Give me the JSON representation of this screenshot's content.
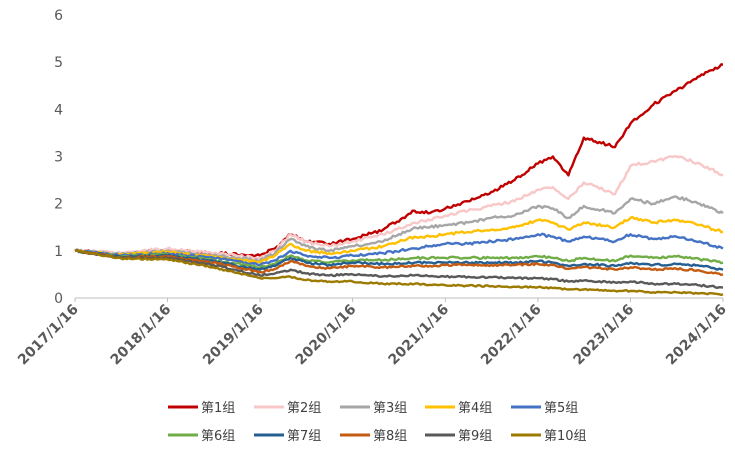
{
  "chart_data": {
    "type": "line",
    "title": "",
    "xlabel": "",
    "ylabel": "",
    "ylim": [
      0,
      6
    ],
    "yticks": [
      0,
      1,
      2,
      3,
      4,
      5,
      6
    ],
    "xlim": [
      "2017/1/16",
      "2024/1/16"
    ],
    "xticks": [
      "2017/1/16",
      "2018/1/16",
      "2019/1/16",
      "2020/1/16",
      "2021/1/16",
      "2022/1/16",
      "2023/1/16",
      "2024/1/16"
    ],
    "grid": false,
    "legend_position": "bottom",
    "series": [
      {
        "name": "第1组",
        "color": "#C00000",
        "x": [
          "2017/1/16",
          "2017/7/16",
          "2018/1/16",
          "2018/7/16",
          "2019/1/16",
          "2019/3/16",
          "2019/5/16",
          "2019/7/16",
          "2019/10/16",
          "2020/1/16",
          "2020/5/16",
          "2020/9/16",
          "2020/11/16",
          "2021/1/16",
          "2021/4/16",
          "2021/7/16",
          "2021/10/16",
          "2022/1/16",
          "2022/3/16",
          "2022/5/16",
          "2022/7/16",
          "2022/11/16",
          "2023/1/16",
          "2023/4/16",
          "2023/7/16",
          "2023/10/16",
          "2024/1/16"
        ],
        "y": [
          1.0,
          0.92,
          1.02,
          0.95,
          0.9,
          1.05,
          1.35,
          1.2,
          1.15,
          1.25,
          1.45,
          1.85,
          1.8,
          1.9,
          2.05,
          2.25,
          2.5,
          2.85,
          3.0,
          2.6,
          3.4,
          3.2,
          3.7,
          4.1,
          4.4,
          4.7,
          4.95
        ]
      },
      {
        "name": "第2组",
        "color": "#F8C8C8",
        "x": [
          "2017/1/16",
          "2017/7/16",
          "2018/1/16",
          "2018/7/16",
          "2019/1/16",
          "2019/3/16",
          "2019/5/16",
          "2019/7/16",
          "2019/10/16",
          "2020/1/16",
          "2020/5/16",
          "2020/9/16",
          "2020/11/16",
          "2021/1/16",
          "2021/4/16",
          "2021/7/16",
          "2021/10/16",
          "2022/1/16",
          "2022/3/16",
          "2022/5/16",
          "2022/7/16",
          "2022/11/16",
          "2023/1/16",
          "2023/4/16",
          "2023/7/16",
          "2023/10/16",
          "2024/1/16"
        ],
        "y": [
          1.0,
          0.95,
          1.05,
          0.95,
          0.85,
          1.0,
          1.35,
          1.2,
          1.1,
          1.2,
          1.35,
          1.6,
          1.65,
          1.75,
          1.85,
          1.95,
          2.05,
          2.3,
          2.35,
          2.1,
          2.45,
          2.2,
          2.8,
          2.9,
          3.0,
          2.85,
          2.6
        ]
      },
      {
        "name": "第3组",
        "color": "#A6A6A6",
        "x": [
          "2017/1/16",
          "2017/7/16",
          "2018/1/16",
          "2018/7/16",
          "2019/1/16",
          "2019/3/16",
          "2019/5/16",
          "2019/7/16",
          "2019/10/16",
          "2020/1/16",
          "2020/5/16",
          "2020/9/16",
          "2020/11/16",
          "2021/1/16",
          "2021/4/16",
          "2021/7/16",
          "2021/10/16",
          "2022/1/16",
          "2022/3/16",
          "2022/5/16",
          "2022/7/16",
          "2022/11/16",
          "2023/1/16",
          "2023/4/16",
          "2023/7/16",
          "2023/10/16",
          "2024/1/16"
        ],
        "y": [
          1.0,
          0.93,
          1.0,
          0.9,
          0.8,
          0.95,
          1.25,
          1.1,
          1.0,
          1.1,
          1.2,
          1.5,
          1.5,
          1.55,
          1.6,
          1.7,
          1.75,
          1.95,
          1.9,
          1.7,
          1.95,
          1.8,
          2.1,
          2.0,
          2.15,
          2.0,
          1.8
        ]
      },
      {
        "name": "第4组",
        "color": "#FFC000",
        "x": [
          "2017/1/16",
          "2017/7/16",
          "2018/1/16",
          "2018/7/16",
          "2019/1/16",
          "2019/3/16",
          "2019/5/16",
          "2019/7/16",
          "2019/10/16",
          "2020/1/16",
          "2020/5/16",
          "2020/9/16",
          "2020/11/16",
          "2021/1/16",
          "2021/4/16",
          "2021/7/16",
          "2021/10/16",
          "2022/1/16",
          "2022/3/16",
          "2022/5/16",
          "2022/7/16",
          "2022/11/16",
          "2023/1/16",
          "2023/4/16",
          "2023/7/16",
          "2023/10/16",
          "2024/1/16"
        ],
        "y": [
          1.0,
          0.92,
          0.98,
          0.88,
          0.75,
          0.9,
          1.15,
          1.0,
          0.95,
          1.0,
          1.1,
          1.3,
          1.3,
          1.35,
          1.4,
          1.45,
          1.5,
          1.65,
          1.6,
          1.45,
          1.6,
          1.5,
          1.7,
          1.6,
          1.65,
          1.55,
          1.4
        ]
      },
      {
        "name": "第5组",
        "color": "#4472C4",
        "x": [
          "2017/1/16",
          "2017/7/16",
          "2018/1/16",
          "2018/7/16",
          "2019/1/16",
          "2019/3/16",
          "2019/5/16",
          "2019/7/16",
          "2019/10/16",
          "2020/1/16",
          "2020/5/16",
          "2020/9/16",
          "2020/11/16",
          "2021/1/16",
          "2021/4/16",
          "2021/7/16",
          "2021/10/16",
          "2022/1/16",
          "2022/3/16",
          "2022/5/16",
          "2022/7/16",
          "2022/11/16",
          "2023/1/16",
          "2023/4/16",
          "2023/7/16",
          "2023/10/16",
          "2024/1/16"
        ],
        "y": [
          1.0,
          0.9,
          0.95,
          0.85,
          0.7,
          0.8,
          1.0,
          0.9,
          0.85,
          0.9,
          0.95,
          1.05,
          1.1,
          1.15,
          1.15,
          1.2,
          1.25,
          1.35,
          1.3,
          1.2,
          1.3,
          1.2,
          1.35,
          1.25,
          1.3,
          1.2,
          1.05
        ]
      },
      {
        "name": "第6组",
        "color": "#70AD47",
        "x": [
          "2017/1/16",
          "2017/7/16",
          "2018/1/16",
          "2018/7/16",
          "2019/1/16",
          "2019/3/16",
          "2019/5/16",
          "2019/7/16",
          "2019/10/16",
          "2020/1/16",
          "2020/5/16",
          "2020/9/16",
          "2020/11/16",
          "2021/1/16",
          "2021/4/16",
          "2021/7/16",
          "2021/10/16",
          "2022/1/16",
          "2022/3/16",
          "2022/5/16",
          "2022/7/16",
          "2022/11/16",
          "2023/1/16",
          "2023/4/16",
          "2023/7/16",
          "2023/10/16",
          "2024/1/16"
        ],
        "y": [
          1.0,
          0.88,
          0.92,
          0.8,
          0.65,
          0.72,
          0.9,
          0.8,
          0.75,
          0.8,
          0.8,
          0.85,
          0.85,
          0.85,
          0.85,
          0.85,
          0.85,
          0.88,
          0.85,
          0.78,
          0.85,
          0.78,
          0.9,
          0.85,
          0.88,
          0.82,
          0.75
        ]
      },
      {
        "name": "第7组",
        "color": "#255E91",
        "x": [
          "2017/1/16",
          "2017/7/16",
          "2018/1/16",
          "2018/7/16",
          "2019/1/16",
          "2019/3/16",
          "2019/5/16",
          "2019/7/16",
          "2019/10/16",
          "2020/1/16",
          "2020/5/16",
          "2020/9/16",
          "2020/11/16",
          "2021/1/16",
          "2021/4/16",
          "2021/7/16",
          "2021/10/16",
          "2022/1/16",
          "2022/3/16",
          "2022/5/16",
          "2022/7/16",
          "2022/11/16",
          "2023/1/16",
          "2023/4/16",
          "2023/7/16",
          "2023/10/16",
          "2024/1/16"
        ],
        "y": [
          1.0,
          0.87,
          0.9,
          0.78,
          0.6,
          0.68,
          0.85,
          0.75,
          0.7,
          0.75,
          0.72,
          0.75,
          0.75,
          0.75,
          0.75,
          0.75,
          0.75,
          0.78,
          0.75,
          0.68,
          0.72,
          0.68,
          0.75,
          0.7,
          0.72,
          0.68,
          0.6
        ]
      },
      {
        "name": "第8组",
        "color": "#C55A11",
        "x": [
          "2017/1/16",
          "2017/7/16",
          "2018/1/16",
          "2018/7/16",
          "2019/1/16",
          "2019/3/16",
          "2019/5/16",
          "2019/7/16",
          "2019/10/16",
          "2020/1/16",
          "2020/5/16",
          "2020/9/16",
          "2020/11/16",
          "2021/1/16",
          "2021/4/16",
          "2021/7/16",
          "2021/10/16",
          "2022/1/16",
          "2022/3/16",
          "2022/5/16",
          "2022/7/16",
          "2022/11/16",
          "2023/1/16",
          "2023/4/16",
          "2023/7/16",
          "2023/10/16",
          "2024/1/16"
        ],
        "y": [
          1.0,
          0.86,
          0.88,
          0.75,
          0.55,
          0.62,
          0.78,
          0.68,
          0.63,
          0.68,
          0.65,
          0.68,
          0.68,
          0.7,
          0.7,
          0.7,
          0.7,
          0.72,
          0.7,
          0.62,
          0.66,
          0.6,
          0.65,
          0.6,
          0.62,
          0.58,
          0.5
        ]
      },
      {
        "name": "第9组",
        "color": "#595959",
        "x": [
          "2017/1/16",
          "2017/7/16",
          "2018/1/16",
          "2018/7/16",
          "2019/1/16",
          "2019/3/16",
          "2019/5/16",
          "2019/7/16",
          "2019/10/16",
          "2020/1/16",
          "2020/5/16",
          "2020/9/16",
          "2020/11/16",
          "2021/1/16",
          "2021/4/16",
          "2021/7/16",
          "2021/10/16",
          "2022/1/16",
          "2022/3/16",
          "2022/5/16",
          "2022/7/16",
          "2022/11/16",
          "2023/1/16",
          "2023/4/16",
          "2023/7/16",
          "2023/10/16",
          "2024/1/16"
        ],
        "y": [
          1.0,
          0.85,
          0.85,
          0.7,
          0.48,
          0.52,
          0.6,
          0.52,
          0.48,
          0.5,
          0.46,
          0.48,
          0.46,
          0.45,
          0.45,
          0.44,
          0.42,
          0.42,
          0.4,
          0.35,
          0.37,
          0.33,
          0.35,
          0.3,
          0.3,
          0.27,
          0.22
        ]
      },
      {
        "name": "第10组",
        "color": "#9C7A00",
        "x": [
          "2017/1/16",
          "2017/7/16",
          "2018/1/16",
          "2018/7/16",
          "2019/1/16",
          "2019/3/16",
          "2019/5/16",
          "2019/7/16",
          "2019/10/16",
          "2020/1/16",
          "2020/5/16",
          "2020/9/16",
          "2020/11/16",
          "2021/1/16",
          "2021/4/16",
          "2021/7/16",
          "2021/10/16",
          "2022/1/16",
          "2022/3/16",
          "2022/5/16",
          "2022/7/16",
          "2022/11/16",
          "2023/1/16",
          "2023/4/16",
          "2023/7/16",
          "2023/10/16",
          "2024/1/16"
        ],
        "y": [
          1.0,
          0.84,
          0.82,
          0.65,
          0.42,
          0.42,
          0.45,
          0.38,
          0.35,
          0.35,
          0.3,
          0.3,
          0.28,
          0.27,
          0.26,
          0.25,
          0.24,
          0.23,
          0.21,
          0.18,
          0.18,
          0.15,
          0.15,
          0.12,
          0.12,
          0.1,
          0.08
        ]
      }
    ]
  }
}
